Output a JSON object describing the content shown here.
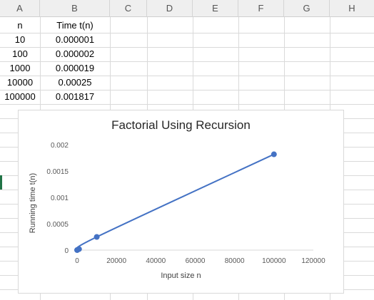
{
  "sheet": {
    "columns": [
      "A",
      "B",
      "C",
      "D",
      "E",
      "F",
      "G",
      "H"
    ],
    "headers": {
      "a": "n",
      "b": "Time t(n)"
    },
    "rows": [
      {
        "a": "10",
        "b": "0.000001"
      },
      {
        "a": "100",
        "b": "0.000002"
      },
      {
        "a": "1000",
        "b": "0.000019"
      },
      {
        "a": "10000",
        "b": "0.00025"
      },
      {
        "a": "100000",
        "b": "0.001817"
      }
    ],
    "selection_color": "#217346"
  },
  "chart_data": {
    "type": "scatter",
    "title": "Factorial Using Recursion",
    "xlabel": "Input size n",
    "ylabel": "Running time t(n)",
    "series": [
      {
        "x": [
          10,
          100,
          1000,
          10000,
          100000
        ],
        "values": [
          1e-06,
          2e-06,
          1.9e-05,
          0.00025,
          0.001817
        ],
        "color": "#4472C4",
        "smooth": true,
        "markers": true
      }
    ],
    "x_ticks": [
      "0",
      "20000",
      "40000",
      "60000",
      "80000",
      "100000",
      "120000"
    ],
    "y_ticks": [
      "0",
      "0.0005",
      "0.001",
      "0.0015",
      "0.002"
    ],
    "xlim": [
      0,
      120000
    ],
    "ylim": [
      0,
      0.002
    ],
    "grid": false,
    "legend": "none"
  }
}
